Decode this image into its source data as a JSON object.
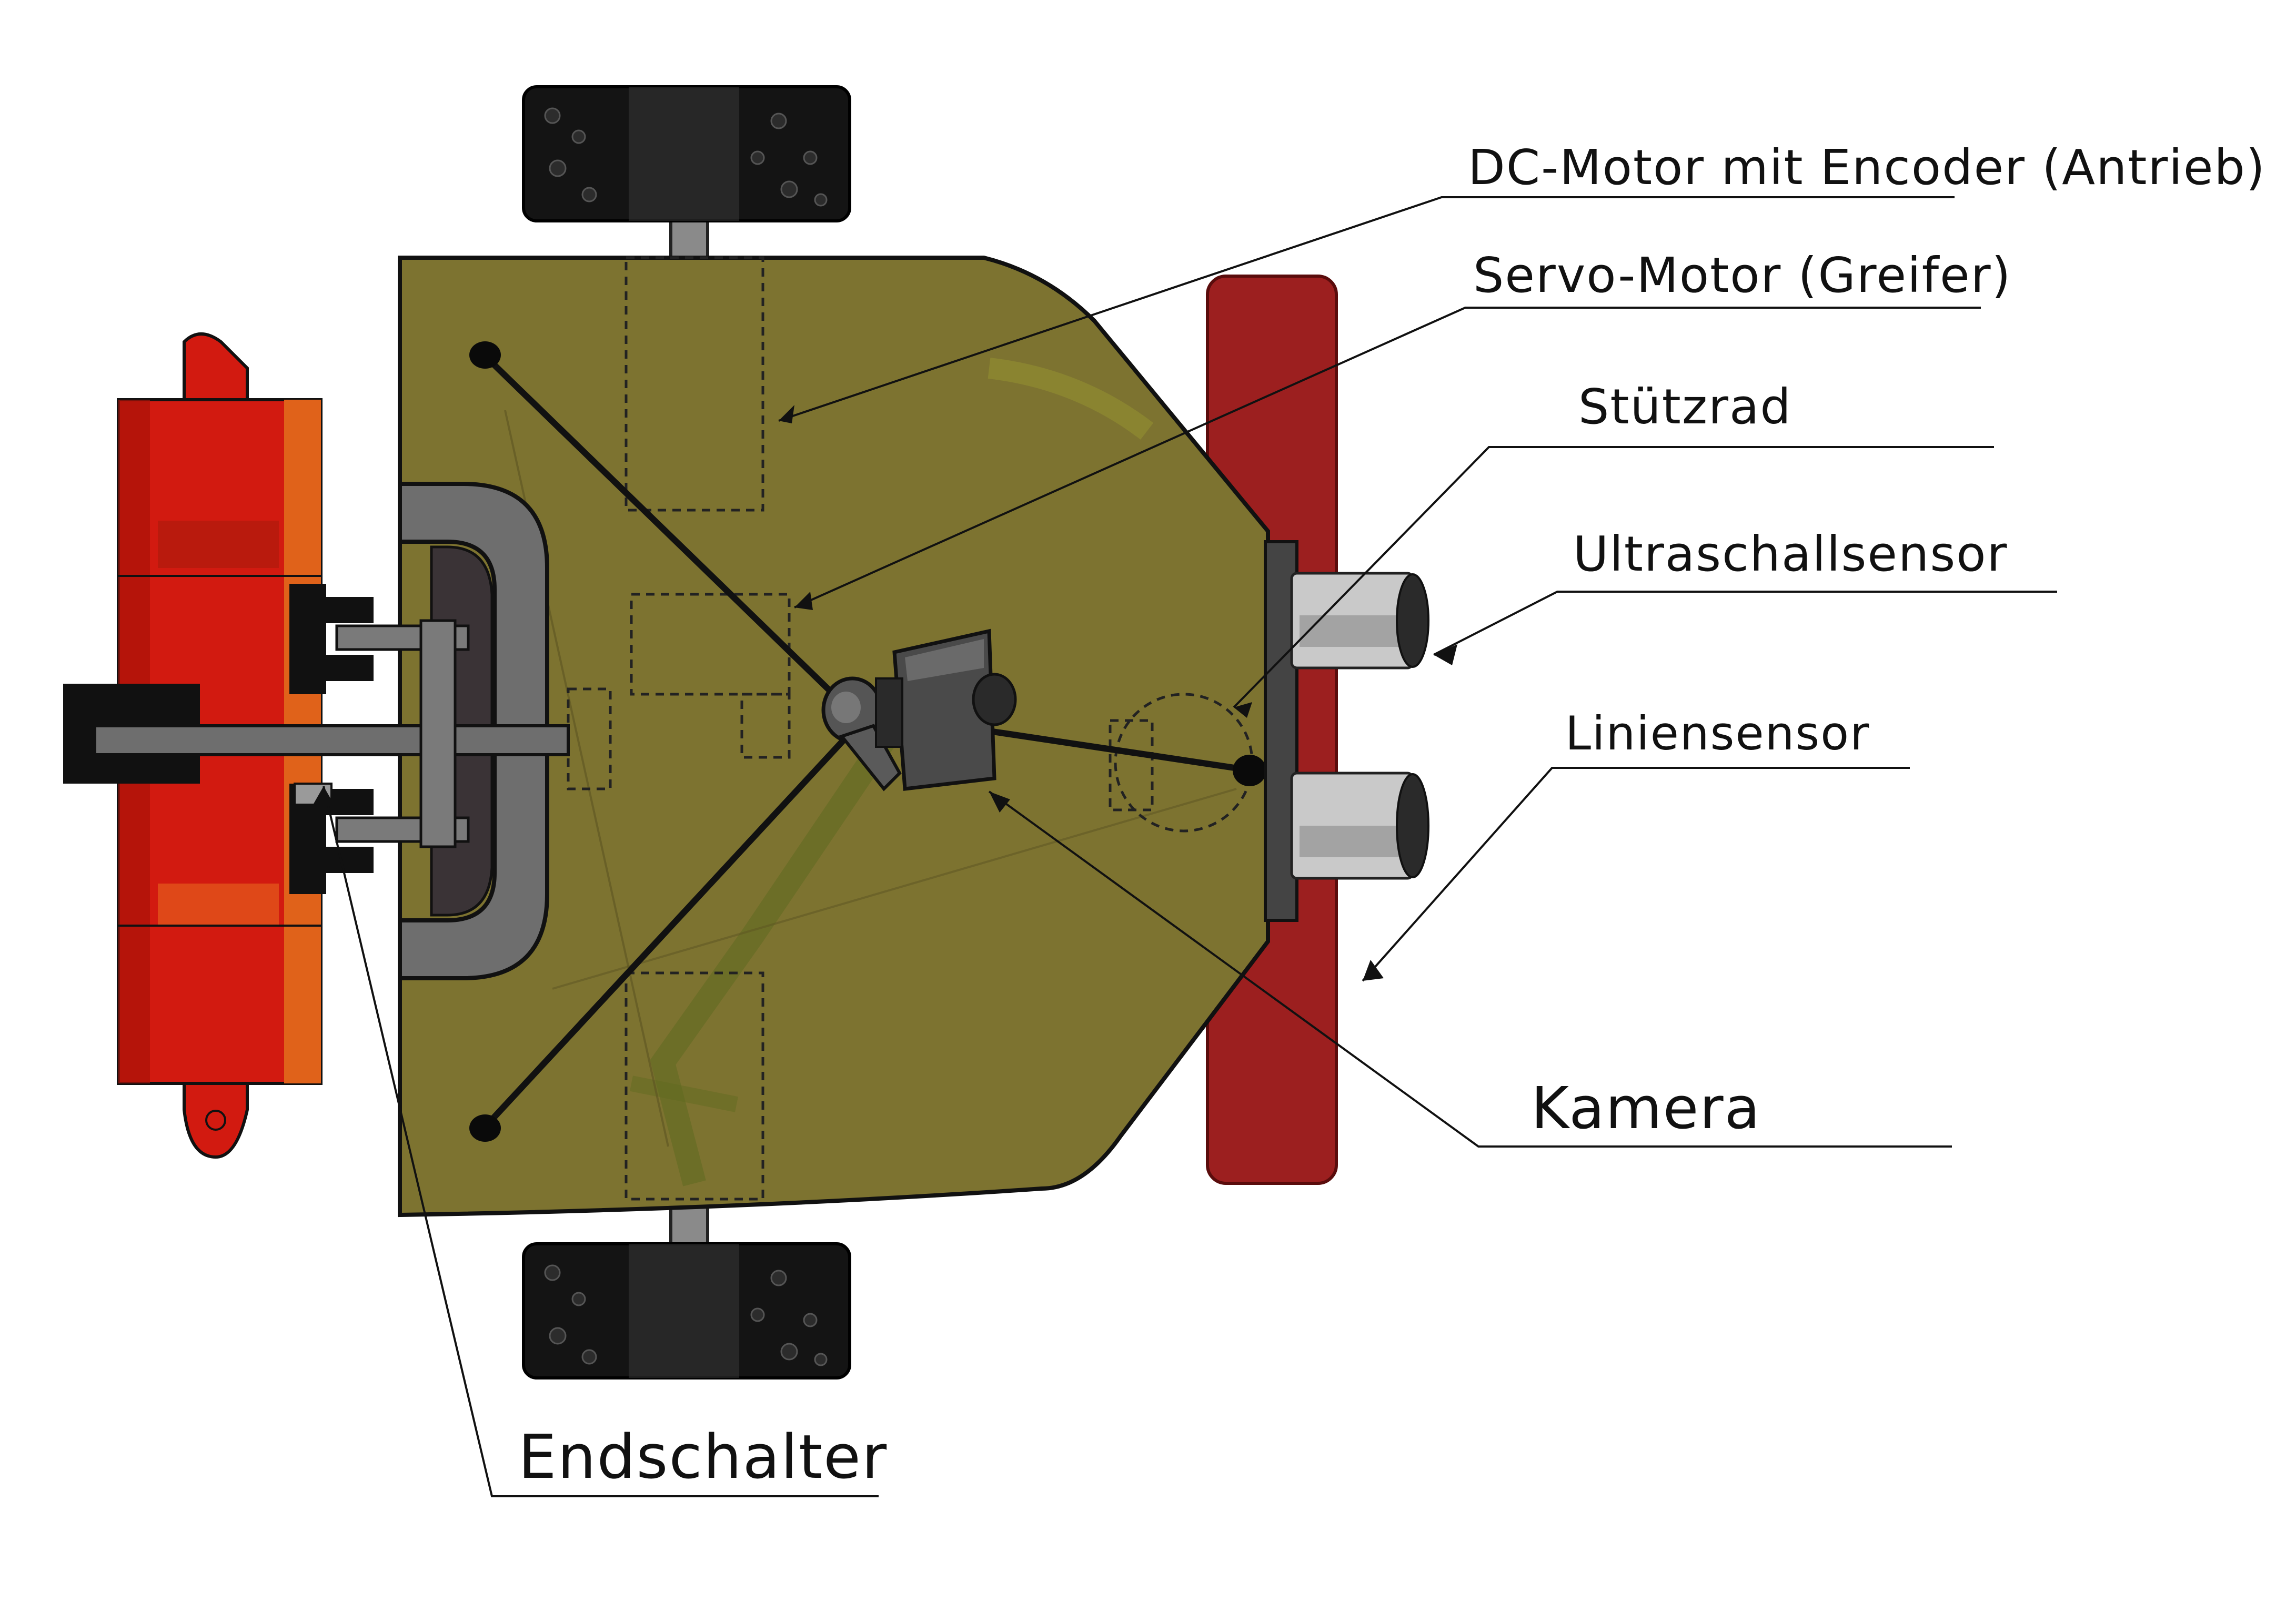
{
  "diagram": {
    "labels": {
      "dc_motor": "DC-Motor mit Encoder (Antrieb)",
      "servo": "Servo-Motor (Greifer)",
      "stuetzrad": "Stützrad",
      "ultraschall": "Ultraschallsensor",
      "linien": "Liniensensor",
      "kamera": "Kamera",
      "endschalter": "Endschalter"
    },
    "colors": {
      "chassis": "#7d7330",
      "gripper_red": "#d21a10",
      "gripper_orange": "#e0621a",
      "front_bumper": "#9c1f1f",
      "wheel": "#141414",
      "gray": "#6e6e6e",
      "leader": "#111111"
    }
  }
}
